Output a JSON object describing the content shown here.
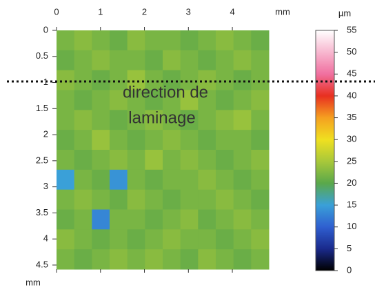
{
  "chart_data": {
    "type": "heatmap",
    "annotation": [
      "direction de",
      "laminage"
    ],
    "x_unit": "mm",
    "y_unit": "mm",
    "colorbar_unit": "µm",
    "xlim": [
      0,
      4.83
    ],
    "xticks": [
      0,
      1,
      2,
      3,
      4
    ],
    "ylim": [
      0,
      4.58
    ],
    "yticks": [
      0,
      0.5,
      1,
      1.5,
      2,
      2.5,
      3,
      3.5,
      4,
      4.5
    ],
    "clim": [
      0,
      55
    ],
    "cticks": [
      0,
      5,
      10,
      15,
      20,
      25,
      30,
      35,
      40,
      45,
      50,
      55
    ],
    "colorscale": [
      [
        0,
        "#000000"
      ],
      [
        5,
        "#1a2a8c"
      ],
      [
        10,
        "#2f5fd0"
      ],
      [
        15,
        "#3aa0d8"
      ],
      [
        20,
        "#5aa84a"
      ],
      [
        25,
        "#a8c83a"
      ],
      [
        30,
        "#f0e020"
      ],
      [
        35,
        "#f5a020"
      ],
      [
        40,
        "#e83020"
      ],
      [
        45,
        "#f070a0"
      ],
      [
        55,
        "#ffffff"
      ]
    ],
    "values": [
      [
        22,
        23,
        22,
        21,
        23,
        22,
        22,
        21,
        22,
        23,
        22,
        21
      ],
      [
        21,
        22,
        23,
        22,
        22,
        21,
        23,
        22,
        21,
        22,
        23,
        22
      ],
      [
        23,
        22,
        21,
        22,
        24,
        22,
        21,
        22,
        23,
        22,
        21,
        22
      ],
      [
        22,
        21,
        22,
        23,
        22,
        21,
        22,
        24,
        22,
        21,
        22,
        23
      ],
      [
        22,
        23,
        22,
        21,
        22,
        23,
        22,
        21,
        22,
        23,
        24,
        22
      ],
      [
        21,
        22,
        24,
        22,
        21,
        22,
        23,
        22,
        21,
        22,
        22,
        21
      ],
      [
        22,
        21,
        22,
        23,
        22,
        24,
        22,
        23,
        22,
        21,
        22,
        23
      ],
      [
        15,
        22,
        21,
        14,
        22,
        21,
        22,
        22,
        23,
        22,
        21,
        22
      ],
      [
        22,
        23,
        22,
        21,
        23,
        22,
        21,
        22,
        22,
        23,
        22,
        21
      ],
      [
        21,
        22,
        13,
        22,
        22,
        21,
        22,
        23,
        21,
        22,
        23,
        22
      ],
      [
        23,
        22,
        21,
        22,
        21,
        22,
        23,
        22,
        22,
        21,
        22,
        23
      ],
      [
        22,
        21,
        22,
        23,
        22,
        23,
        22,
        21,
        23,
        22,
        21,
        22
      ]
    ]
  }
}
